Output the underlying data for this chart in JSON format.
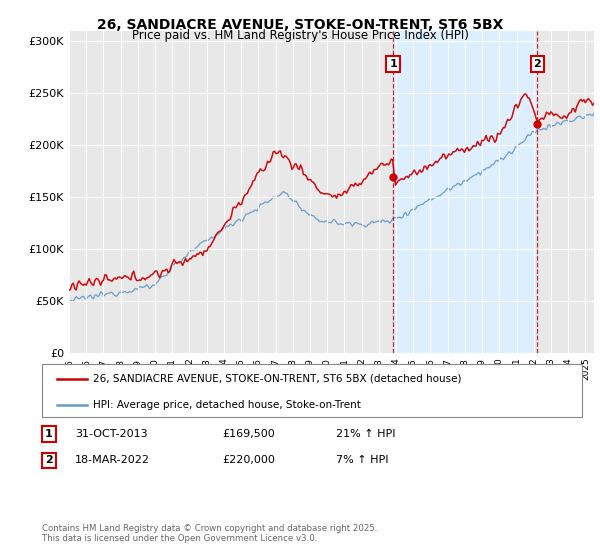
{
  "title": "26, SANDIACRE AVENUE, STOKE-ON-TRENT, ST6 5BX",
  "subtitle": "Price paid vs. HM Land Registry's House Price Index (HPI)",
  "ylabel_ticks": [
    "£0",
    "£50K",
    "£100K",
    "£150K",
    "£200K",
    "£250K",
    "£300K"
  ],
  "ytick_vals": [
    0,
    50000,
    100000,
    150000,
    200000,
    250000,
    300000
  ],
  "ylim": [
    0,
    310000
  ],
  "xlim_start": 1995.0,
  "xlim_end": 2025.5,
  "red_line_color": "#cc0000",
  "blue_line_color": "#6699cc",
  "shade_color": "#ddeeff",
  "vline_color": "#cc0000",
  "marker1_x": 2013.83,
  "marker2_x": 2022.21,
  "marker1_label": "1",
  "marker2_label": "2",
  "sale1_price": 169500,
  "sale2_price": 220000,
  "legend_line1": "26, SANDIACRE AVENUE, STOKE-ON-TRENT, ST6 5BX (detached house)",
  "legend_line2": "HPI: Average price, detached house, Stoke-on-Trent",
  "info1_num": "1",
  "info1_date": "31-OCT-2013",
  "info1_price": "£169,500",
  "info1_hpi": "21% ↑ HPI",
  "info2_num": "2",
  "info2_date": "18-MAR-2022",
  "info2_price": "£220,000",
  "info2_hpi": "7% ↑ HPI",
  "footer": "Contains HM Land Registry data © Crown copyright and database right 2025.\nThis data is licensed under the Open Government Licence v3.0.",
  "background_color": "#ffffff",
  "plot_bg_color": "#e8e8e8"
}
